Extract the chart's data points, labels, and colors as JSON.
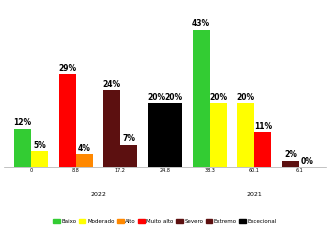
{
  "categories": [
    "Baixo",
    "Moderado",
    "Alto",
    "Muito alto",
    "Severo",
    "Extremo",
    "Excecional"
  ],
  "values_2022": [
    12,
    29,
    24,
    20,
    43,
    20,
    2
  ],
  "values_2021": [
    5,
    4,
    7,
    20,
    20,
    11,
    0
  ],
  "bar_colors_2022": [
    "#33cc33",
    "#ff0000",
    "#5c1010",
    "#000000",
    "#33cc33",
    "#ffff00",
    "#5c1010"
  ],
  "bar_colors_2021": [
    "#ffff00",
    "#ff8800",
    "#5c1010",
    "#000000",
    "#ffff00",
    "#ff0000",
    "#5c1010"
  ],
  "legend_colors": [
    "#33cc33",
    "#ffff00",
    "#ff8800",
    "#ff0000",
    "#5c1010",
    "#5c1010",
    "#000000"
  ],
  "legend_labels": [
    "Baixo",
    "Moderado",
    "Alto",
    "Muito alto",
    "Severo",
    "Extremo",
    "Excecional"
  ],
  "x_ticks_2022": [
    "0",
    "8.8",
    "17.2",
    "24.8",
    "38.3"
  ],
  "x_ticks_2021": [
    "60.1",
    "6.1"
  ],
  "year_2022_label": "2022",
  "year_2021_label": "2021",
  "background_color": "#ffffff",
  "bar_width": 0.38,
  "ylim": [
    0,
    51
  ],
  "label_fontsize": 5.5,
  "legend_fontsize": 4.0
}
